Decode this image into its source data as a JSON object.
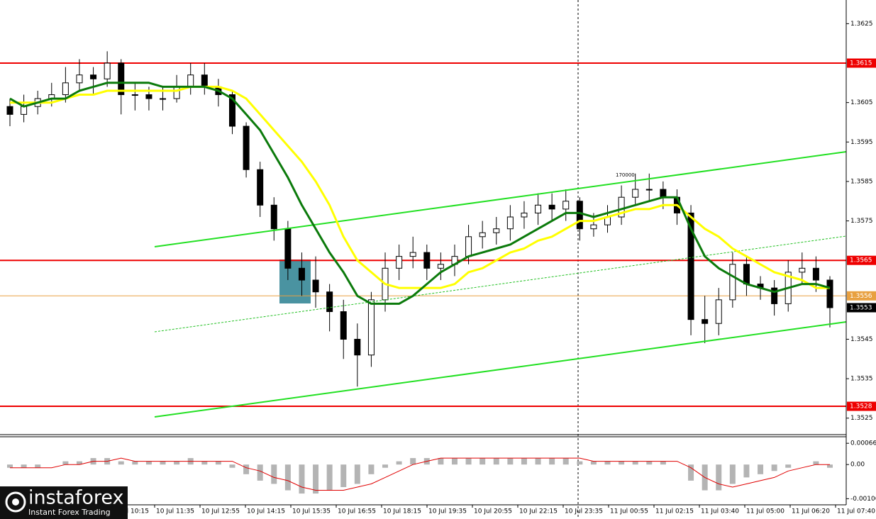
{
  "chart_data": {
    "type": "candlestick",
    "candles": {
      "open": [
        1.3604,
        1.3602,
        1.3604,
        1.3606,
        1.3607,
        1.361,
        1.3612,
        1.3611,
        1.3615,
        1.3607,
        1.3607,
        1.3606,
        1.3606,
        1.3609,
        1.3612,
        1.3609,
        1.3607,
        1.3599,
        1.3588,
        1.3579,
        1.3573,
        1.3563,
        1.356,
        1.3557,
        1.3552,
        1.3545,
        1.3541,
        1.3555,
        1.3563,
        1.3566,
        1.3567,
        1.3563,
        1.3564,
        1.3566,
        1.3571,
        1.3572,
        1.3573,
        1.3576,
        1.3577,
        1.3579,
        1.3578,
        1.358,
        1.3573,
        1.3574,
        1.3576,
        1.3581,
        1.3583,
        1.3583,
        1.3581,
        1.3577,
        1.355,
        1.3549,
        1.3555,
        1.3564,
        1.3559,
        1.3558,
        1.3554,
        1.3562,
        1.3563,
        1.356
      ],
      "high": [
        1.3606,
        1.3607,
        1.3608,
        1.361,
        1.3614,
        1.3616,
        1.3614,
        1.3618,
        1.3616,
        1.361,
        1.3609,
        1.3609,
        1.3612,
        1.3615,
        1.3615,
        1.3611,
        1.3608,
        1.36,
        1.359,
        1.3581,
        1.3575,
        1.3567,
        1.3566,
        1.3559,
        1.3555,
        1.3549,
        1.3557,
        1.3567,
        1.3569,
        1.3571,
        1.3569,
        1.3567,
        1.3569,
        1.3574,
        1.3575,
        1.3576,
        1.3579,
        1.358,
        1.3582,
        1.3582,
        1.3583,
        1.3581,
        1.3577,
        1.3579,
        1.3584,
        1.3587,
        1.3587,
        1.3585,
        1.3583,
        1.3579,
        1.3556,
        1.3558,
        1.3567,
        1.3566,
        1.3561,
        1.356,
        1.3565,
        1.3567,
        1.3566,
        1.3561
      ],
      "low": [
        1.3599,
        1.36,
        1.3602,
        1.3604,
        1.3605,
        1.3608,
        1.3607,
        1.3609,
        1.3602,
        1.3603,
        1.3603,
        1.3603,
        1.3605,
        1.3607,
        1.3607,
        1.3604,
        1.3597,
        1.3586,
        1.3576,
        1.357,
        1.356,
        1.3556,
        1.3553,
        1.3547,
        1.354,
        1.3533,
        1.3538,
        1.3552,
        1.356,
        1.3563,
        1.356,
        1.356,
        1.3561,
        1.3564,
        1.3568,
        1.3569,
        1.357,
        1.3573,
        1.3574,
        1.3575,
        1.3575,
        1.357,
        1.3571,
        1.3572,
        1.3574,
        1.3579,
        1.358,
        1.3578,
        1.3574,
        1.3546,
        1.3544,
        1.3546,
        1.3553,
        1.3556,
        1.3555,
        1.3551,
        1.3552,
        1.3559,
        1.3557,
        1.3548
      ],
      "close": [
        1.3602,
        1.3604,
        1.3606,
        1.3607,
        1.361,
        1.3612,
        1.3611,
        1.3615,
        1.3607,
        1.3607,
        1.3606,
        1.3606,
        1.3609,
        1.3612,
        1.3609,
        1.3607,
        1.3599,
        1.3588,
        1.3579,
        1.3573,
        1.3563,
        1.356,
        1.3557,
        1.3552,
        1.3545,
        1.3541,
        1.3555,
        1.3563,
        1.3566,
        1.3567,
        1.3563,
        1.3564,
        1.3566,
        1.3571,
        1.3572,
        1.3573,
        1.3576,
        1.3577,
        1.3579,
        1.3578,
        1.358,
        1.3573,
        1.3574,
        1.3576,
        1.3581,
        1.3583,
        1.3583,
        1.3581,
        1.3577,
        1.355,
        1.3549,
        1.3555,
        1.3564,
        1.3559,
        1.3558,
        1.3554,
        1.3562,
        1.3563,
        1.356,
        1.3553
      ]
    },
    "candle_up_color": "#ffffff",
    "candle_down_color": "#000000",
    "ma_fast": {
      "color": "#0b7a0b",
      "values": [
        1.3606,
        1.3604,
        1.3605,
        1.3606,
        1.3606,
        1.3608,
        1.3609,
        1.361,
        1.361,
        1.361,
        1.361,
        1.3609,
        1.3609,
        1.3609,
        1.3609,
        1.3608,
        1.3606,
        1.3602,
        1.3598,
        1.3592,
        1.3586,
        1.3579,
        1.3573,
        1.3567,
        1.3562,
        1.3556,
        1.3554,
        1.3554,
        1.3554,
        1.3556,
        1.3559,
        1.3562,
        1.3564,
        1.3566,
        1.3567,
        1.3568,
        1.3569,
        1.3571,
        1.3573,
        1.3575,
        1.3577,
        1.3577,
        1.3576,
        1.3577,
        1.3578,
        1.3579,
        1.358,
        1.3581,
        1.3581,
        1.3573,
        1.3566,
        1.3563,
        1.3561,
        1.3559,
        1.3558,
        1.3557,
        1.3558,
        1.3559,
        1.3559,
        1.3558
      ]
    },
    "ma_slow": {
      "color": "#ffff00",
      "values": [
        1.3605,
        1.3605,
        1.3605,
        1.3605,
        1.3606,
        1.3607,
        1.3607,
        1.3608,
        1.3608,
        1.3608,
        1.3608,
        1.3608,
        1.3608,
        1.3609,
        1.3609,
        1.3609,
        1.3608,
        1.3606,
        1.3602,
        1.3598,
        1.3594,
        1.359,
        1.3585,
        1.3579,
        1.3571,
        1.3565,
        1.3562,
        1.3559,
        1.3558,
        1.3558,
        1.3558,
        1.3558,
        1.3559,
        1.3562,
        1.3563,
        1.3565,
        1.3567,
        1.3568,
        1.357,
        1.3571,
        1.3573,
        1.3575,
        1.3575,
        1.3576,
        1.3577,
        1.3578,
        1.3578,
        1.3579,
        1.3579,
        1.3576,
        1.3573,
        1.3571,
        1.3568,
        1.3566,
        1.3564,
        1.3562,
        1.3561,
        1.356,
        1.3558,
        1.3558
      ]
    },
    "ylim": [
      1.3521,
      1.3631
    ],
    "yticks": [
      1.3625,
      1.3605,
      1.3595,
      1.3585,
      1.3575,
      1.3545,
      1.3535,
      1.3525
    ],
    "levels": [
      1.3615,
      1.3565,
      1.3528
    ],
    "level_color": "#ee0000",
    "ask_line": 1.3556,
    "ask_color": "#e8a040",
    "last_price": 1.3553,
    "annotation": "170000",
    "x_labels": [
      "10 Jul 10:15",
      "10 Jul 11:35",
      "10 Jul 12:55",
      "10 Jul 14:15",
      "10 Jul 15:35",
      "10 Jul 16:55",
      "10 Jul 18:15",
      "10 Jul 19:35",
      "10 Jul 20:55",
      "10 Jul 22:15",
      "10 Jul 23:35",
      "11 Jul 00:55",
      "11 Jul 02:15",
      "11 Jul 03:40",
      "11 Jul 05:00",
      "11 Jul 06:20",
      "11 Jul 07:40"
    ],
    "macd": {
      "histogram": [
        -0.0001,
        -0.0001,
        -0.0001,
        0,
        0.0001,
        0.0001,
        0.0002,
        0.0002,
        0.0001,
        0.0001,
        0.0001,
        0.0001,
        0.0001,
        0.0002,
        0.0001,
        0.0001,
        -0.0001,
        -0.0003,
        -0.0005,
        -0.0006,
        -0.0008,
        -0.0009,
        -0.0009,
        -0.0008,
        -0.0007,
        -0.0006,
        -0.0003,
        -0.0001,
        0.0001,
        0.0002,
        0.0002,
        0.0002,
        0.0002,
        0.0002,
        0.0002,
        0.0002,
        0.0002,
        0.0002,
        0.0002,
        0.0002,
        0.0002,
        0.0001,
        0.0001,
        0.0001,
        0.0001,
        0.0001,
        0.0001,
        0.0001,
        0,
        -0.0005,
        -0.0008,
        -0.0008,
        -0.0006,
        -0.0004,
        -0.0003,
        -0.0002,
        -0.0001,
        0,
        0.0001,
        -0.0001
      ],
      "signal": [
        -0.0001,
        -0.0001,
        -0.0001,
        -0.0001,
        0,
        0,
        0.0001,
        0.0001,
        0.0002,
        0.0001,
        0.0001,
        0.0001,
        0.0001,
        0.0001,
        0.0001,
        0.0001,
        0.0001,
        -0.0001,
        -0.0002,
        -0.0004,
        -0.0005,
        -0.0007,
        -0.0008,
        -0.0008,
        -0.0008,
        -0.0007,
        -0.0006,
        -0.0004,
        -0.0002,
        0,
        0.0001,
        0.0002,
        0.0002,
        0.0002,
        0.0002,
        0.0002,
        0.0002,
        0.0002,
        0.0002,
        0.0002,
        0.0002,
        0.0002,
        0.0001,
        0.0001,
        0.0001,
        0.0001,
        0.0001,
        0.0001,
        0.0001,
        -0.0001,
        -0.0004,
        -0.0006,
        -0.0007,
        -0.0006,
        -0.0005,
        -0.0004,
        -0.0002,
        -0.0001,
        0,
        0
      ],
      "histogram_color": "#b4b4b4",
      "signal_color": "#e00000",
      "y2lim": [
        -0.00125,
        0.00084
      ],
      "y2ticks": [
        0.00066,
        {
          "value": 0,
          "label": "0.00"
        },
        -0.00106
      ]
    },
    "watermark": {
      "brand": "instaforex",
      "tagline": "Instant Forex Trading"
    }
  }
}
